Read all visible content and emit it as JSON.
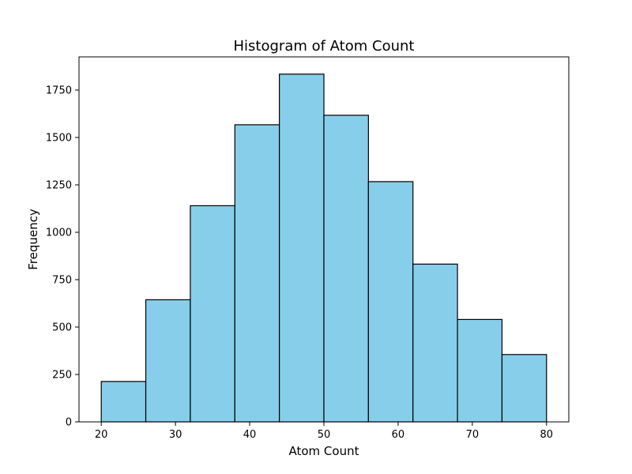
{
  "chart_data": {
    "type": "bar",
    "subtype": "histogram",
    "title": "Histogram of Atom Count",
    "xlabel": "Atom Count",
    "ylabel": "Frequency",
    "bin_edges": [
      20,
      26,
      32,
      38,
      44,
      50,
      56,
      62,
      68,
      74,
      80
    ],
    "values": [
      213,
      644,
      1140,
      1567,
      1834,
      1617,
      1267,
      832,
      540,
      355
    ],
    "xlim": [
      17,
      83
    ],
    "ylim": [
      0,
      1925
    ],
    "xticks": [
      20,
      30,
      40,
      50,
      60,
      70,
      80
    ],
    "xtick_labels": [
      "20",
      "30",
      "40",
      "50",
      "60",
      "70",
      "80"
    ],
    "yticks": [
      0,
      250,
      500,
      750,
      1000,
      1250,
      1500,
      1750
    ],
    "ytick_labels": [
      "0",
      "250",
      "500",
      "750",
      "1000",
      "1250",
      "1500",
      "1750"
    ],
    "bar_color": "#87ceeb",
    "edge_color": "#000000",
    "grid": false,
    "legend": "none"
  }
}
